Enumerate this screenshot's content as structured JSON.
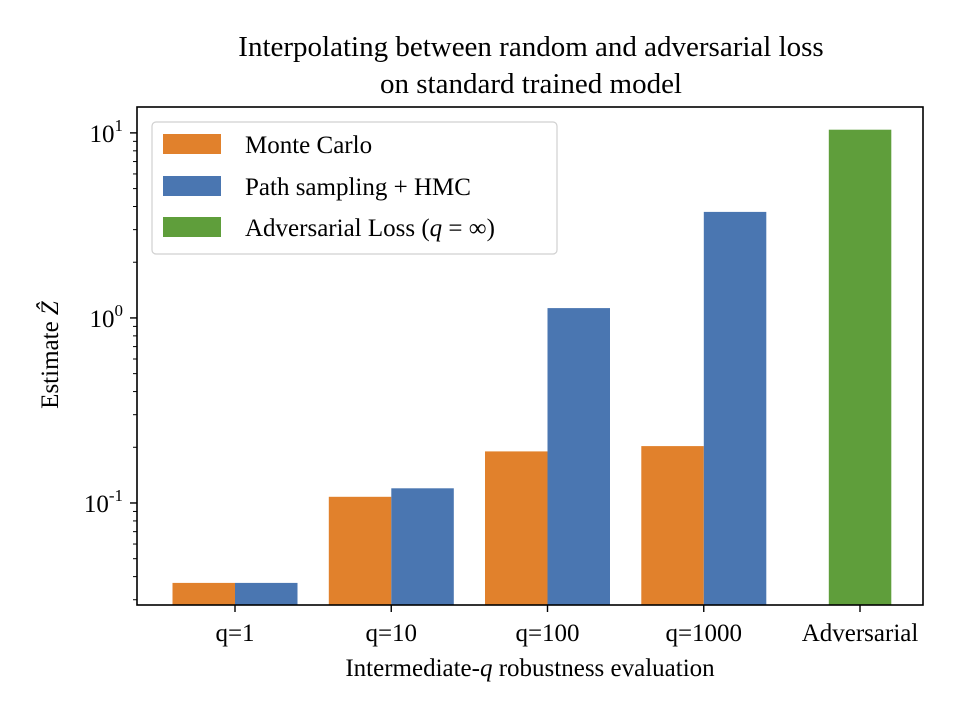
{
  "chart_data": {
    "type": "bar",
    "title": "Interpolating between random and adversarial loss",
    "subtitle": "on standard trained model",
    "xlabel_pre": "Intermediate-",
    "xlabel_var": "q",
    "xlabel_post": " robustness evaluation",
    "xlabel": "Intermediate-q robustness evaluation",
    "ylabel_text": "Estimate ",
    "ylabel_var": "Ẑ",
    "ylabel": "Estimate Ẑ",
    "yscale": "log",
    "ylim": [
      0.0281,
      13.8
    ],
    "yticks": [
      {
        "value": 10,
        "base": "10",
        "exp": "1"
      },
      {
        "value": 1,
        "base": "10",
        "exp": "0"
      },
      {
        "value": 0.1,
        "base": "10",
        "exp": "-1"
      }
    ],
    "categories": [
      "q=1",
      "q=10",
      "q=100",
      "q=1000",
      "Adversarial"
    ],
    "series": [
      {
        "name": "Monte Carlo",
        "color": "#e1812c",
        "offset": -0.5,
        "values": [
          0.037,
          0.108,
          0.19,
          0.203,
          null
        ]
      },
      {
        "name": "Path sampling + HMC",
        "color": "#4a76b1",
        "offset": 0.5,
        "values": [
          0.037,
          0.12,
          1.13,
          3.74,
          null
        ]
      },
      {
        "name": "Adversarial Loss (q = ∞)",
        "color": "#5f9e3b",
        "offset": 0,
        "values": [
          null,
          null,
          null,
          null,
          10.4
        ]
      }
    ],
    "legend": {
      "placement": "top-left",
      "entries": [
        {
          "text": "Monte Carlo",
          "color": "#e1812c"
        },
        {
          "text": "Path sampling + HMC",
          "color": "#4a76b1"
        },
        {
          "text_pre": "Adversarial Loss (",
          "var": "q",
          "text_post": " = ∞)",
          "color": "#5f9e3b"
        }
      ]
    },
    "grid": false
  }
}
